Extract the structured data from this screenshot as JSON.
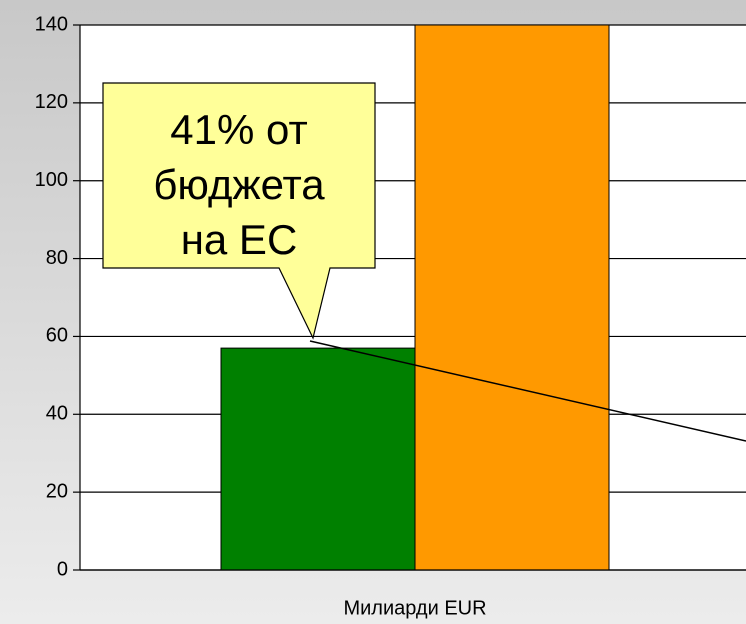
{
  "chart_data": {
    "type": "bar",
    "x_label": "Милиарди EUR",
    "categories": [
      null
    ],
    "series": [
      {
        "color": "#008000",
        "values": [
          57
        ]
      },
      {
        "color": "#ff9900",
        "values": [
          140
        ]
      }
    ],
    "ylim": [
      0,
      140
    ],
    "yticks": [
      0,
      20,
      40,
      60,
      80,
      100,
      120,
      140
    ],
    "grid": true,
    "annotation_lines": [
      "41% от",
      "бюджета",
      "на ЕС"
    ],
    "annotation_color": "#ffff99"
  }
}
